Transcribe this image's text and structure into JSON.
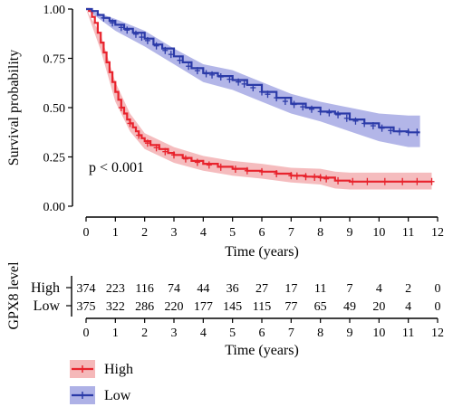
{
  "chart_data": {
    "type": "line",
    "title": "",
    "subtitle": "",
    "annotation": "p < 0.001",
    "xlabel": "Time (years)",
    "ylabel": "Survival probability",
    "xlim": [
      0,
      12
    ],
    "ylim": [
      0,
      1
    ],
    "x_ticks": [
      0,
      1,
      2,
      3,
      4,
      5,
      6,
      7,
      8,
      9,
      10,
      11,
      12
    ],
    "y_ticks": [
      0.0,
      0.25,
      0.5,
      0.75,
      1.0
    ],
    "y_tick_labels": [
      "0.00",
      "0.25",
      "0.50",
      "0.75",
      "1.00"
    ],
    "grid": false,
    "legend_placement": "bottom-left",
    "series": [
      {
        "name": "High",
        "color": "#e8232d",
        "band_color": "#f2a6a8",
        "points": [
          [
            0,
            1.0
          ],
          [
            0.1,
            0.99
          ],
          [
            0.2,
            0.96
          ],
          [
            0.3,
            0.93
          ],
          [
            0.4,
            0.88
          ],
          [
            0.5,
            0.83
          ],
          [
            0.6,
            0.78
          ],
          [
            0.7,
            0.73
          ],
          [
            0.8,
            0.68
          ],
          [
            0.9,
            0.63
          ],
          [
            1.0,
            0.58
          ],
          [
            1.1,
            0.54
          ],
          [
            1.2,
            0.5
          ],
          [
            1.3,
            0.47
          ],
          [
            1.4,
            0.44
          ],
          [
            1.5,
            0.42
          ],
          [
            1.6,
            0.4
          ],
          [
            1.7,
            0.38
          ],
          [
            1.8,
            0.36
          ],
          [
            1.9,
            0.345
          ],
          [
            2.0,
            0.33
          ],
          [
            2.2,
            0.31
          ],
          [
            2.5,
            0.29
          ],
          [
            2.8,
            0.27
          ],
          [
            3.0,
            0.26
          ],
          [
            3.3,
            0.245
          ],
          [
            3.6,
            0.23
          ],
          [
            4.0,
            0.215
          ],
          [
            4.5,
            0.2
          ],
          [
            5.0,
            0.19
          ],
          [
            5.5,
            0.18
          ],
          [
            6.0,
            0.175
          ],
          [
            6.5,
            0.165
          ],
          [
            7.0,
            0.155
          ],
          [
            7.5,
            0.15
          ],
          [
            8.0,
            0.145
          ],
          [
            8.5,
            0.13
          ],
          [
            9.0,
            0.125
          ],
          [
            10.0,
            0.125
          ],
          [
            11.0,
            0.125
          ],
          [
            11.8,
            0.125
          ]
        ],
        "lower": [
          [
            0,
            1.0
          ],
          [
            0.5,
            0.79
          ],
          [
            1.0,
            0.53
          ],
          [
            1.5,
            0.38
          ],
          [
            2.0,
            0.29
          ],
          [
            3.0,
            0.22
          ],
          [
            4.0,
            0.18
          ],
          [
            5.0,
            0.155
          ],
          [
            6.0,
            0.14
          ],
          [
            7.0,
            0.12
          ],
          [
            8.0,
            0.11
          ],
          [
            8.5,
            0.09
          ],
          [
            9.0,
            0.085
          ],
          [
            10.0,
            0.085
          ],
          [
            11.0,
            0.085
          ],
          [
            11.8,
            0.085
          ]
        ],
        "upper": [
          [
            0,
            1.0
          ],
          [
            0.5,
            0.87
          ],
          [
            1.0,
            0.63
          ],
          [
            1.5,
            0.47
          ],
          [
            2.0,
            0.37
          ],
          [
            3.0,
            0.3
          ],
          [
            4.0,
            0.255
          ],
          [
            5.0,
            0.23
          ],
          [
            6.0,
            0.215
          ],
          [
            7.0,
            0.195
          ],
          [
            8.0,
            0.19
          ],
          [
            8.5,
            0.175
          ],
          [
            9.0,
            0.17
          ],
          [
            10.0,
            0.17
          ],
          [
            11.0,
            0.17
          ],
          [
            11.8,
            0.17
          ]
        ],
        "censor_x": [
          1.2,
          1.5,
          1.8,
          2.1,
          2.4,
          2.7,
          3.0,
          3.4,
          3.8,
          4.2,
          4.6,
          5.1,
          5.5,
          6.0,
          6.5,
          7.0,
          7.2,
          7.5,
          7.8,
          8.0,
          8.2,
          8.6,
          9.1,
          9.6,
          10.2,
          10.8,
          11.3,
          11.8
        ]
      },
      {
        "name": "Low",
        "color": "#2b3aa8",
        "band_color": "#9a9ee0",
        "points": [
          [
            0,
            1.0
          ],
          [
            0.2,
            0.99
          ],
          [
            0.4,
            0.97
          ],
          [
            0.6,
            0.955
          ],
          [
            0.8,
            0.94
          ],
          [
            1.0,
            0.92
          ],
          [
            1.3,
            0.9
          ],
          [
            1.6,
            0.88
          ],
          [
            2.0,
            0.85
          ],
          [
            2.3,
            0.82
          ],
          [
            2.6,
            0.8
          ],
          [
            3.0,
            0.76
          ],
          [
            3.3,
            0.73
          ],
          [
            3.6,
            0.7
          ],
          [
            4.0,
            0.675
          ],
          [
            4.5,
            0.66
          ],
          [
            5.0,
            0.64
          ],
          [
            5.5,
            0.615
          ],
          [
            6.0,
            0.58
          ],
          [
            6.5,
            0.55
          ],
          [
            7.0,
            0.52
          ],
          [
            7.5,
            0.5
          ],
          [
            8.0,
            0.48
          ],
          [
            8.5,
            0.47
          ],
          [
            9.0,
            0.44
          ],
          [
            9.5,
            0.42
          ],
          [
            10.0,
            0.4
          ],
          [
            10.5,
            0.38
          ],
          [
            11.0,
            0.375
          ],
          [
            11.4,
            0.375
          ]
        ],
        "lower": [
          [
            0,
            1.0
          ],
          [
            1.0,
            0.89
          ],
          [
            2.0,
            0.81
          ],
          [
            3.0,
            0.72
          ],
          [
            4.0,
            0.63
          ],
          [
            5.0,
            0.59
          ],
          [
            6.0,
            0.53
          ],
          [
            7.0,
            0.47
          ],
          [
            8.0,
            0.43
          ],
          [
            9.0,
            0.38
          ],
          [
            10.0,
            0.33
          ],
          [
            11.0,
            0.3
          ],
          [
            11.4,
            0.3
          ]
        ],
        "upper": [
          [
            0,
            1.0
          ],
          [
            1.0,
            0.95
          ],
          [
            2.0,
            0.89
          ],
          [
            3.0,
            0.8
          ],
          [
            4.0,
            0.72
          ],
          [
            5.0,
            0.69
          ],
          [
            6.0,
            0.63
          ],
          [
            7.0,
            0.57
          ],
          [
            8.0,
            0.53
          ],
          [
            9.0,
            0.5
          ],
          [
            10.0,
            0.47
          ],
          [
            11.0,
            0.46
          ],
          [
            11.4,
            0.46
          ]
        ],
        "censor_x": [
          0.6,
          0.9,
          1.2,
          1.4,
          1.7,
          1.9,
          2.1,
          2.4,
          2.7,
          2.9,
          3.2,
          3.5,
          3.8,
          4.1,
          4.3,
          4.6,
          4.9,
          5.2,
          5.4,
          5.7,
          6.0,
          6.2,
          6.5,
          6.8,
          7.1,
          7.4,
          7.7,
          8.0,
          8.3,
          8.6,
          8.9,
          9.2,
          9.5,
          9.8,
          10.1,
          10.4,
          10.7,
          11.0,
          11.3
        ]
      }
    ],
    "risk_table": {
      "ylabel": "GPX8 level",
      "xlabel": "Time (years)",
      "x": [
        0,
        1,
        2,
        3,
        4,
        5,
        6,
        7,
        8,
        9,
        10,
        11,
        12
      ],
      "rows": [
        {
          "name": "High",
          "color": "#e8232d",
          "values": [
            "374",
            "223",
            "116",
            "74",
            "44",
            "36",
            "27",
            "17",
            "11",
            "7",
            "4",
            "2",
            "0"
          ]
        },
        {
          "name": "Low",
          "color": "#2b3aa8",
          "values": [
            "375",
            "322",
            "286",
            "220",
            "177",
            "145",
            "115",
            "77",
            "65",
            "49",
            "20",
            "4",
            "0"
          ]
        }
      ]
    },
    "legend": [
      {
        "name": "High",
        "color": "#e8232d"
      },
      {
        "name": "Low",
        "color": "#2b3aa8"
      }
    ]
  }
}
